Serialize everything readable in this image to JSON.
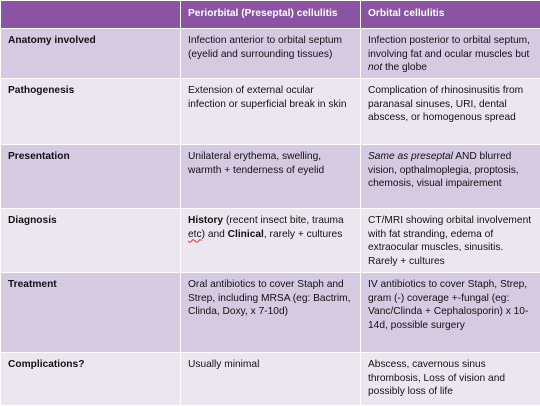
{
  "table": {
    "headers": [
      "",
      "Periorbital (Preseptal) cellulitis",
      "Orbital cellulitis"
    ],
    "rows": [
      {
        "label": "Anatomy involved",
        "preseptal": "Infection anterior to orbital septum (eyelid and surrounding tissues)",
        "orbital": {
          "before": "Infection posterior to orbital septum, involving fat and ocular muscles but ",
          "italic": "not",
          "after": " the globe"
        }
      },
      {
        "label": "Pathogenesis",
        "preseptal": "Extension of external ocular infection or superficial break in skin",
        "orbital": "Complication of rhinosinusitis from paranasal sinuses, URI, dental abscess, or homogenous spread"
      },
      {
        "label": "Presentation",
        "preseptal": "Unilateral erythema, swelling, warmth + tenderness of eyelid",
        "orbital": {
          "italic": "Same as preseptal",
          "after": " AND blurred vision, opthalmoplegia, proptosis, chemosis, visual impairement"
        }
      },
      {
        "label": "Diagnosis",
        "preseptal": {
          "bold1": "History",
          "text1": " (recent insect bite, trauma ",
          "squiggle": "etc",
          "text2": ") and ",
          "bold2": "Clinical",
          "text3": ", rarely + cultures"
        },
        "orbital": "CT/MRI showing orbital involvement with fat stranding, edema of extraocular muscles, sinusitis.  Rarely + cultures"
      },
      {
        "label": "Treatment",
        "preseptal": "Oral antibiotics to cover Staph and Strep, including MRSA (eg: Bactrim, Clinda, Doxy, x 7-10d)",
        "orbital": "IV antibiotics to cover Staph, Strep, gram (-) coverage +-fungal (eg: Vanc/Clinda + Cephalosporin) x 10-14d, possible surgery"
      },
      {
        "label": "Complications?",
        "preseptal": "Usually minimal",
        "orbital": "Abscess, cavernous sinus thrombosis,  Loss of vision and possibly loss of life"
      }
    ]
  },
  "colors": {
    "header_bg": "#8c53a5",
    "row_dark": "#d6c9e2",
    "row_light": "#ece6f1",
    "squiggle": "#e03030"
  }
}
